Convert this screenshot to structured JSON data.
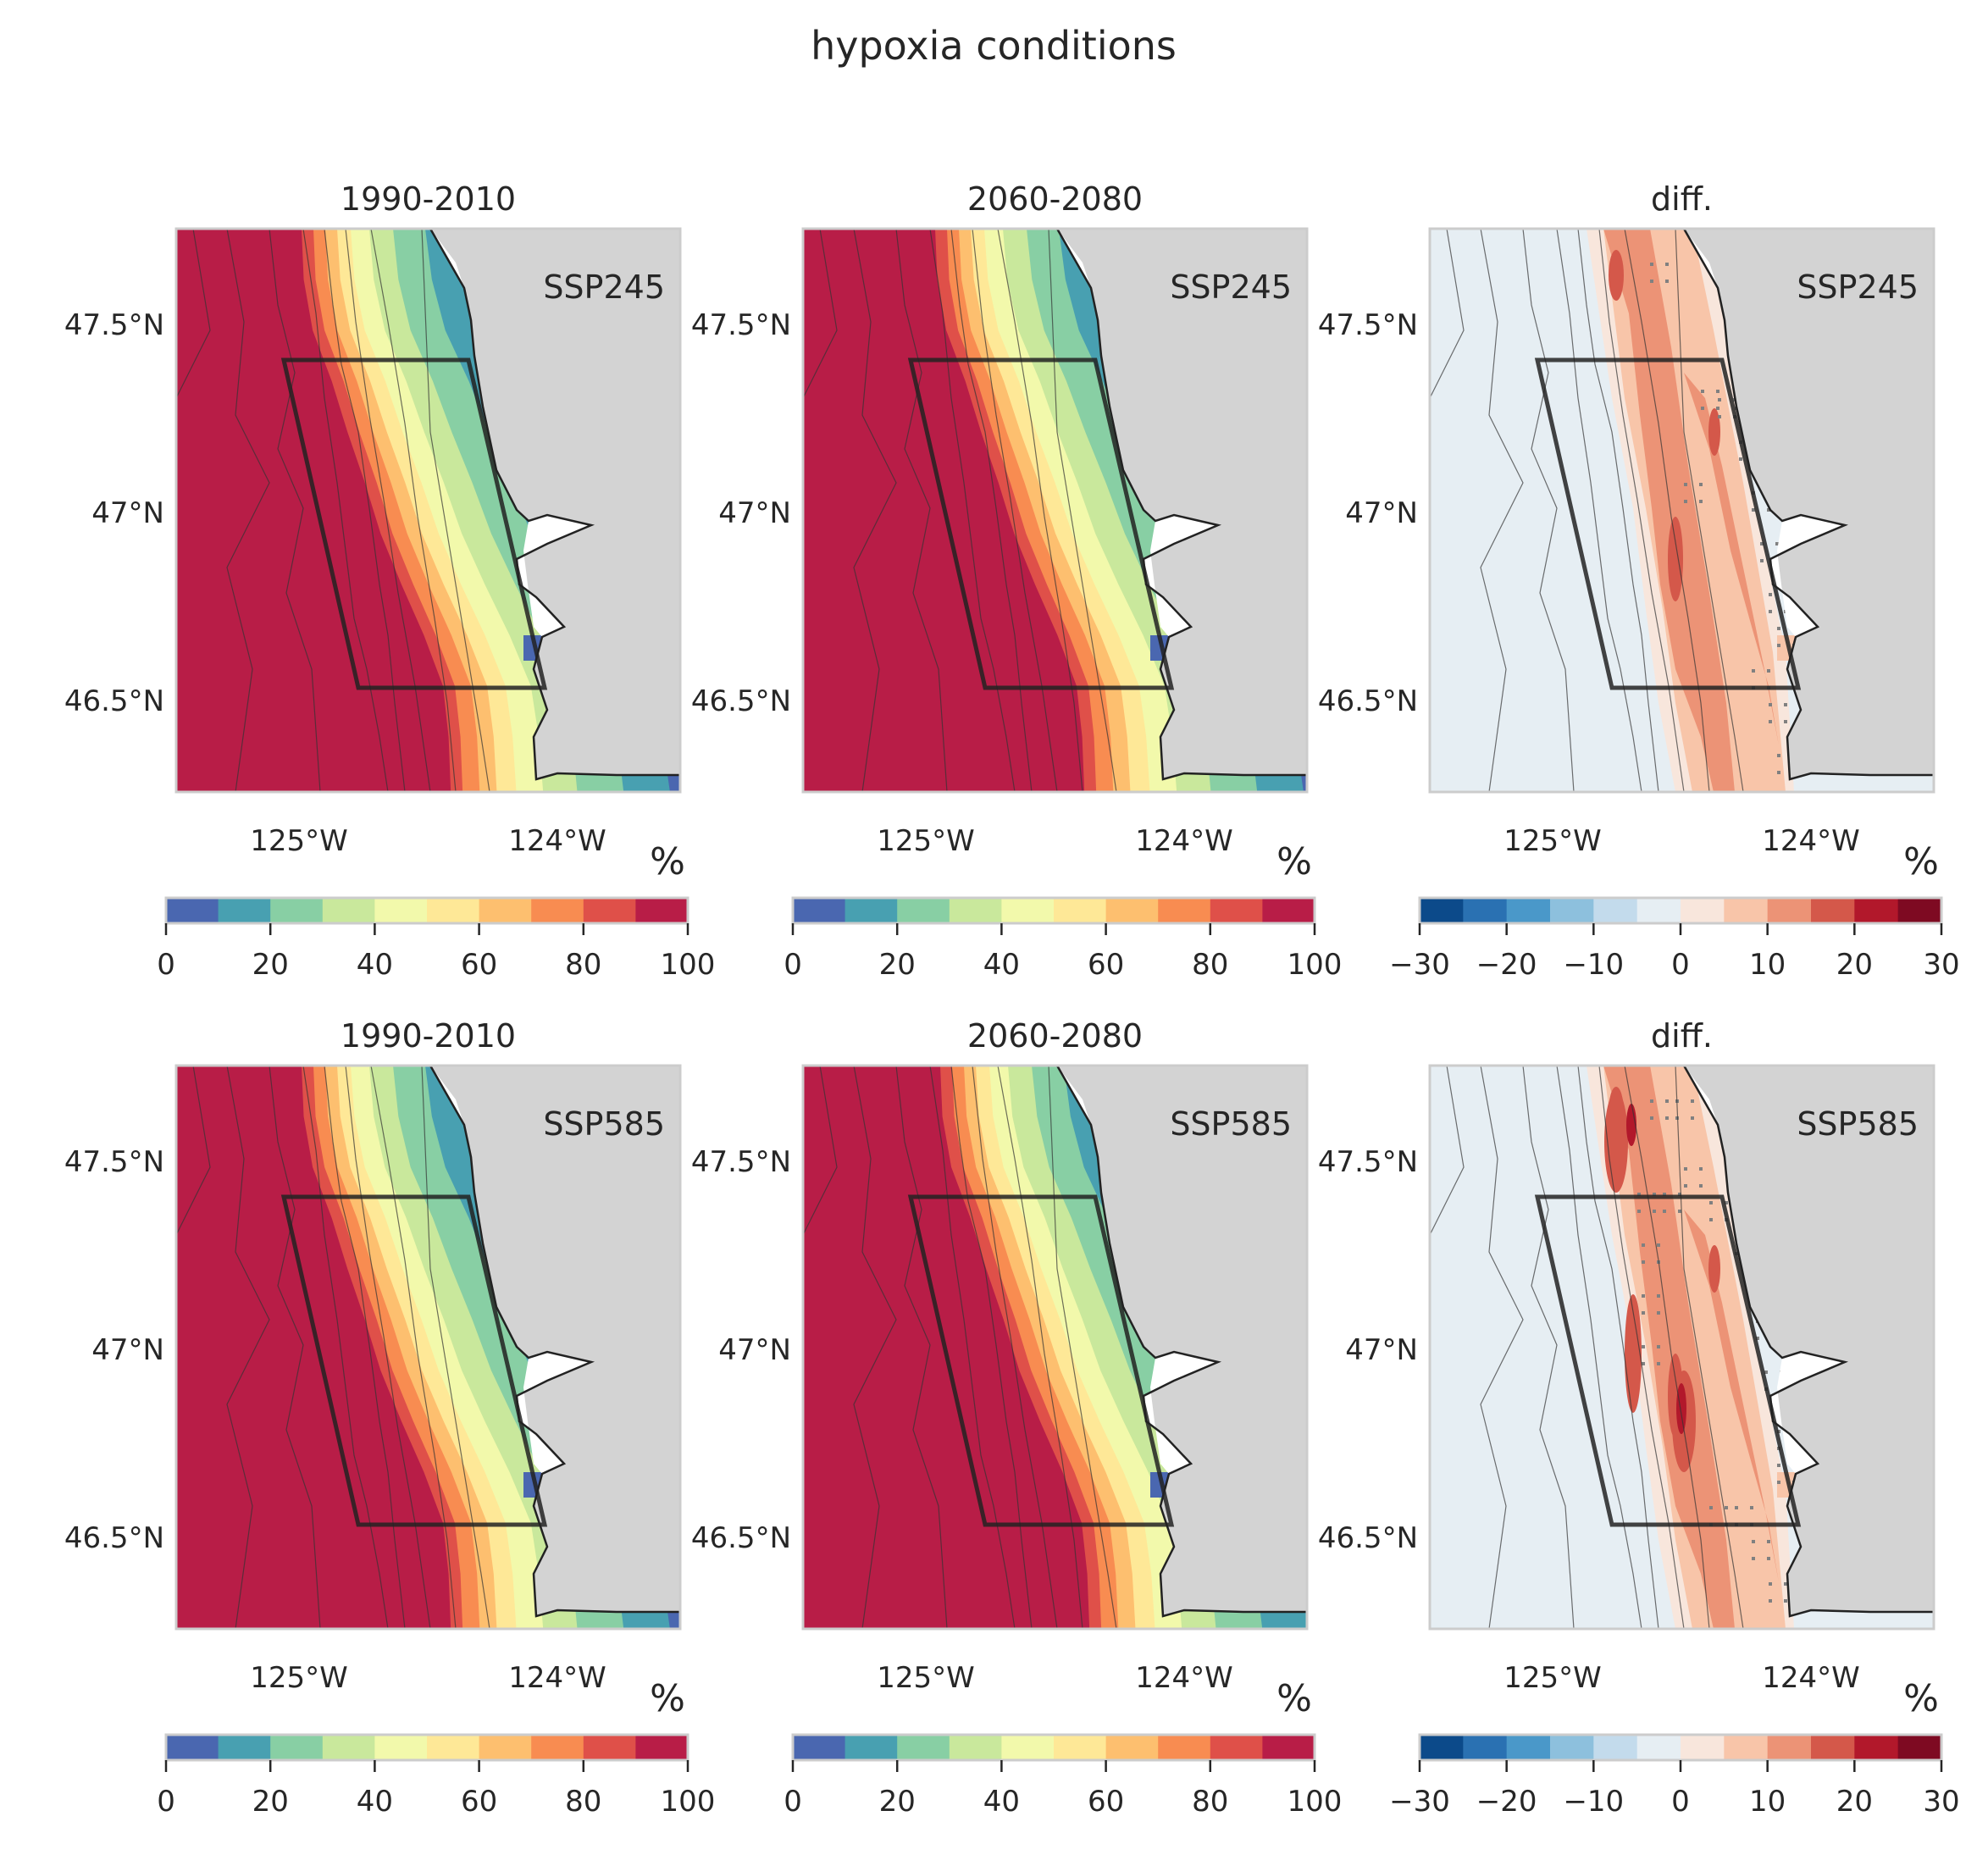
{
  "figure": {
    "title": "hypoxia conditions"
  },
  "colors": {
    "land": "#d3d3d3",
    "frame": "#cccccc",
    "coast": "#222222",
    "box": "#222222",
    "stipple": "#808080",
    "abs_palette": [
      "#4a67b0",
      "#48a0b1",
      "#88cfa4",
      "#c9e89c",
      "#f2f9ab",
      "#fee897",
      "#fdbf6f",
      "#f88c51",
      "#df5049",
      "#b81d47"
    ],
    "diff_palette": [
      "#0c4a8a",
      "#2a71b2",
      "#4a98c9",
      "#8dc0dd",
      "#c3dbec",
      "#e6eef3",
      "#f8e6dc",
      "#f8c5a9",
      "#ec9376",
      "#d4584a",
      "#b2182b",
      "#7e0a22"
    ]
  },
  "panels": [
    {
      "title": "1990-2010",
      "scenario": "SSP245",
      "kind": "abs",
      "variant": "hist",
      "lat_ticks": [
        "47.5°N",
        "47°N",
        "46.5°N"
      ],
      "lon_ticks": [
        "125°W",
        "124°W"
      ],
      "unit": "%",
      "cbar_ticks": [
        "0",
        "20",
        "40",
        "60",
        "80",
        "100"
      ]
    },
    {
      "title": "2060-2080",
      "scenario": "SSP245",
      "kind": "abs",
      "variant": "fut",
      "lat_ticks": [
        "47.5°N",
        "47°N",
        "46.5°N"
      ],
      "lon_ticks": [
        "125°W",
        "124°W"
      ],
      "unit": "%",
      "cbar_ticks": [
        "0",
        "20",
        "40",
        "60",
        "80",
        "100"
      ]
    },
    {
      "title": "diff.",
      "scenario": "SSP245",
      "kind": "diff",
      "variant": "d245",
      "lat_ticks": [
        "47.5°N",
        "47°N",
        "46.5°N"
      ],
      "lon_ticks": [
        "125°W",
        "124°W"
      ],
      "unit": "%",
      "cbar_ticks": [
        "−30",
        "−20",
        "−10",
        "0",
        "10",
        "20",
        "30"
      ]
    },
    {
      "title": "1990-2010",
      "scenario": "SSP585",
      "kind": "abs",
      "variant": "hist",
      "lat_ticks": [
        "47.5°N",
        "47°N",
        "46.5°N"
      ],
      "lon_ticks": [
        "125°W",
        "124°W"
      ],
      "unit": "%",
      "cbar_ticks": [
        "0",
        "20",
        "40",
        "60",
        "80",
        "100"
      ]
    },
    {
      "title": "2060-2080",
      "scenario": "SSP585",
      "kind": "abs",
      "variant": "fut585",
      "lat_ticks": [
        "47.5°N",
        "47°N",
        "46.5°N"
      ],
      "lon_ticks": [
        "125°W",
        "124°W"
      ],
      "unit": "%",
      "cbar_ticks": [
        "0",
        "20",
        "40",
        "60",
        "80",
        "100"
      ]
    },
    {
      "title": "diff.",
      "scenario": "SSP585",
      "kind": "diff",
      "variant": "d585",
      "lat_ticks": [
        "47.5°N",
        "47°N",
        "46.5°N"
      ],
      "lon_ticks": [
        "125°W",
        "124°W"
      ],
      "unit": "%",
      "cbar_ticks": [
        "−30",
        "−20",
        "−10",
        "0",
        "10",
        "20",
        "30"
      ]
    }
  ]
}
